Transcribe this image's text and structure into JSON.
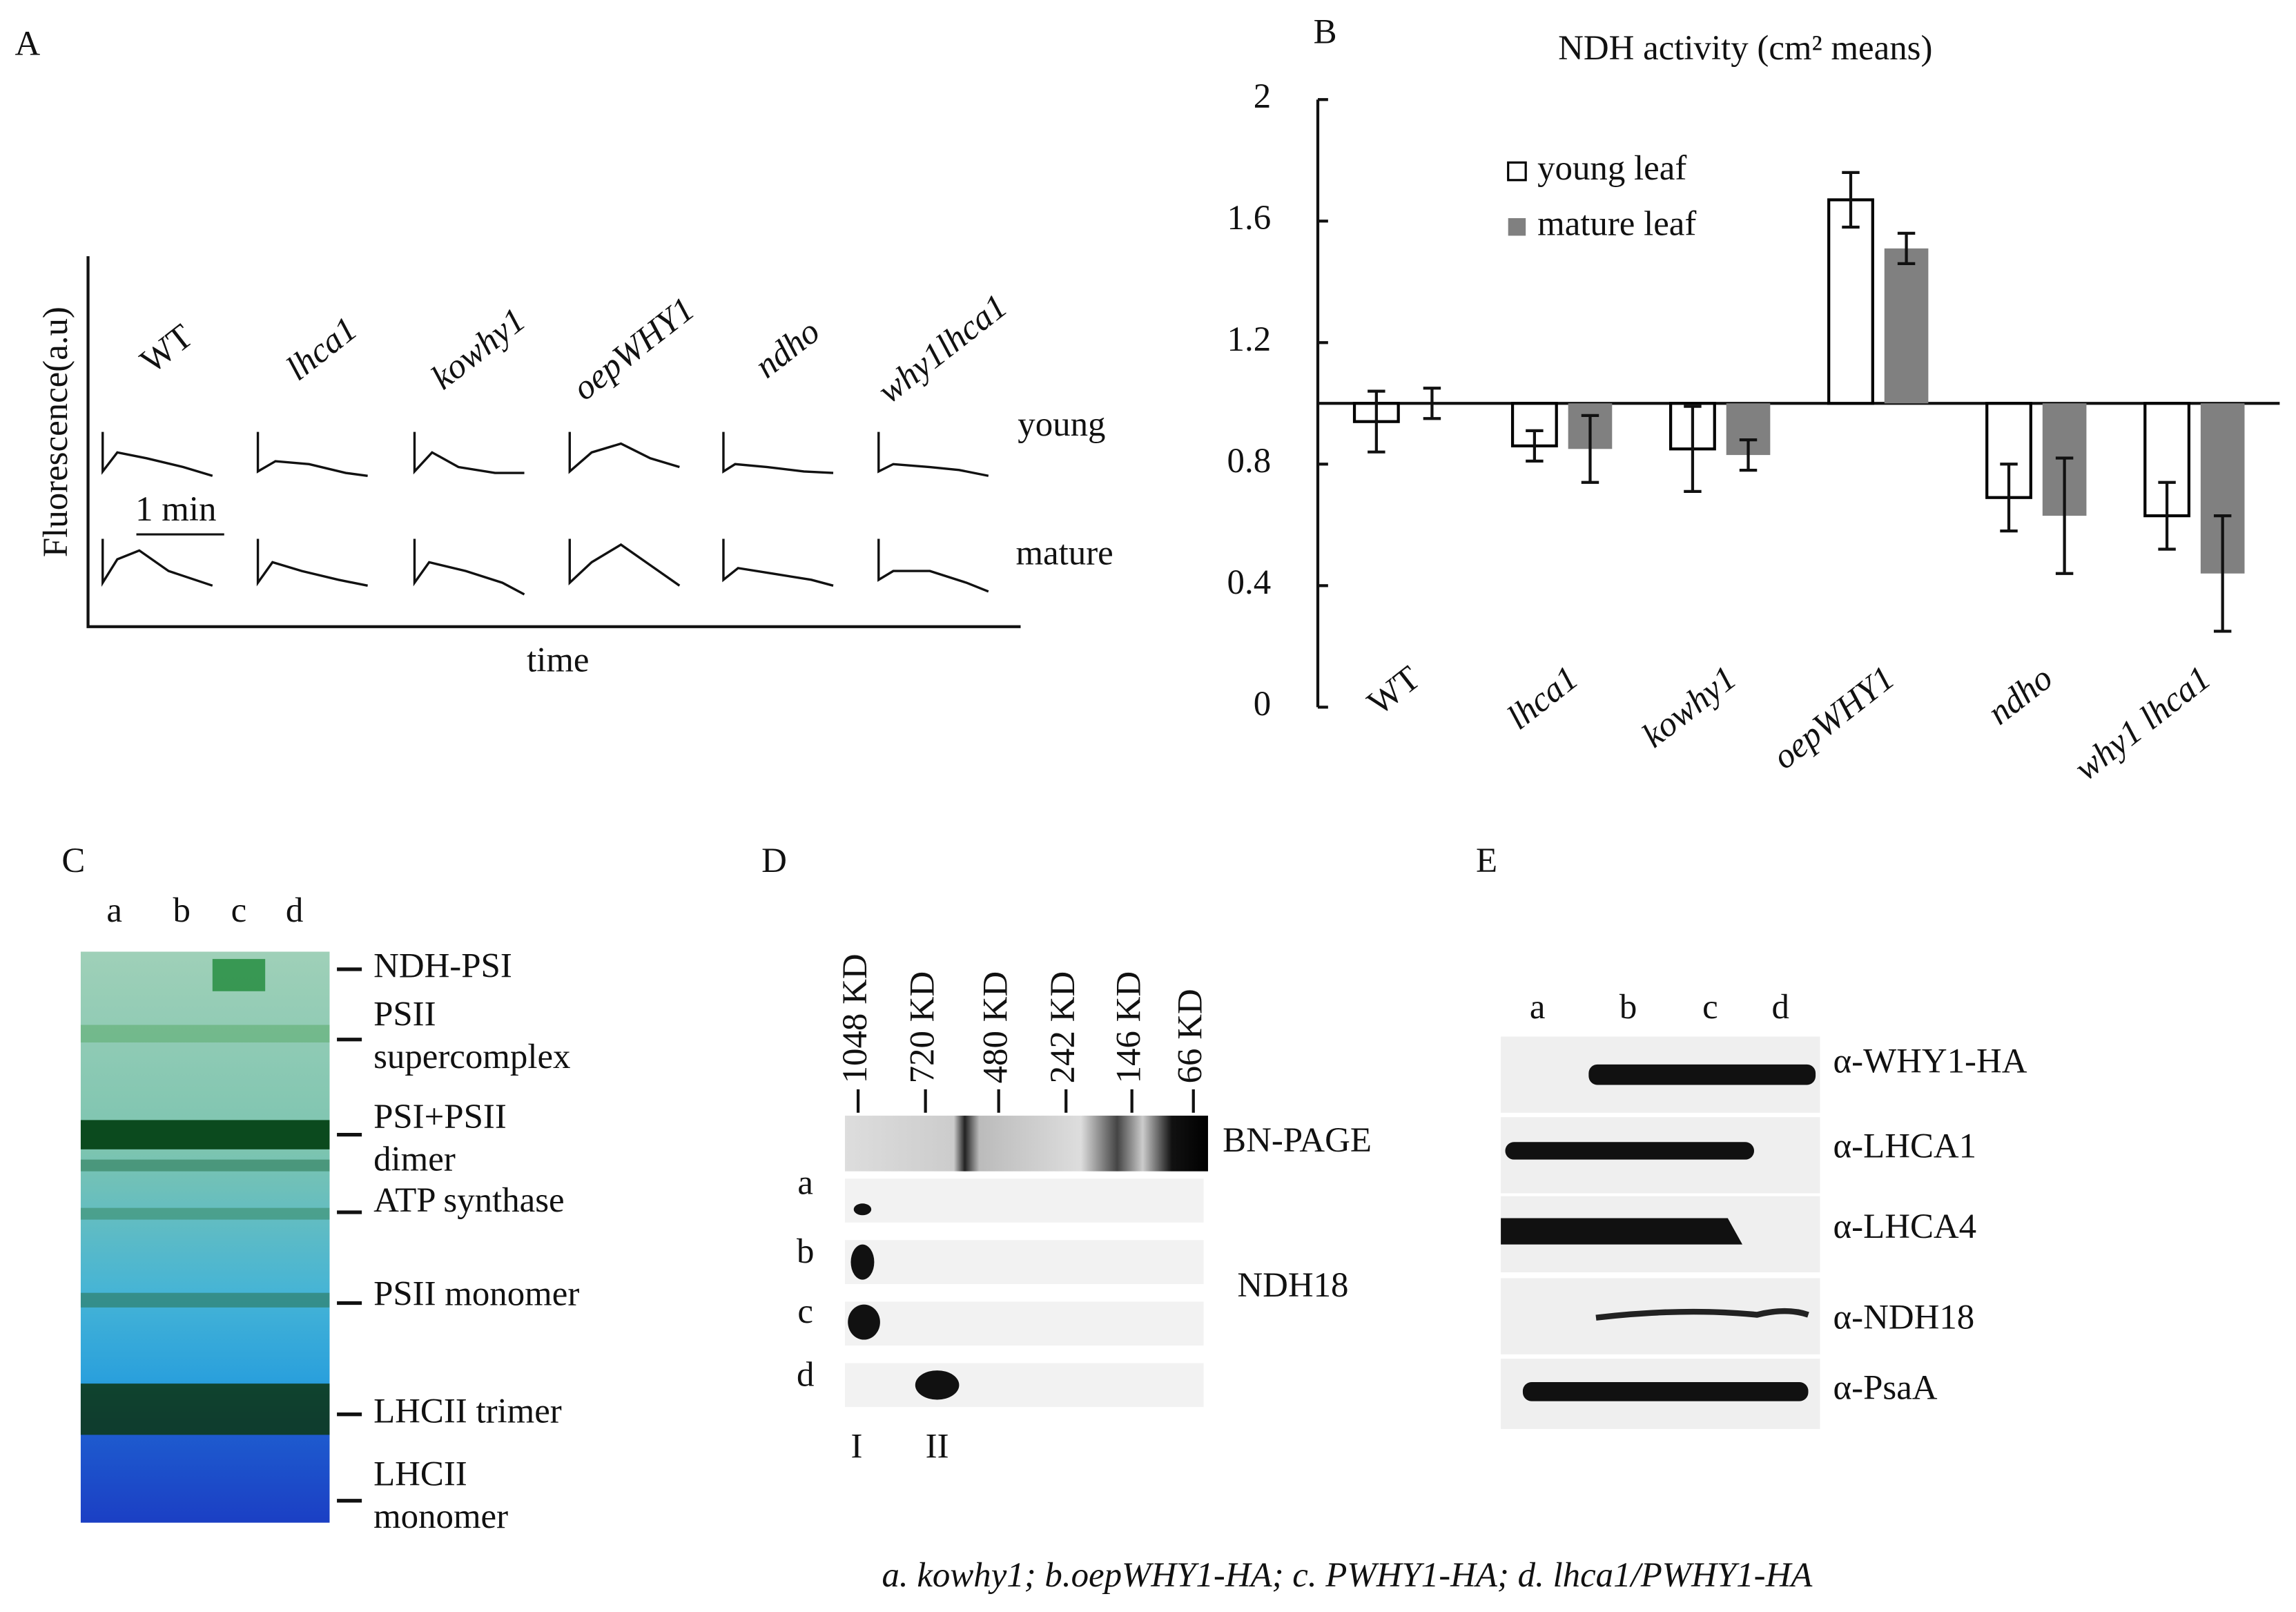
{
  "chart_data": {
    "type": "bar",
    "panel_label": "B",
    "title": "NDH activity (cm² means)",
    "categories": [
      "WT",
      "lhca1",
      "kowhy1",
      "oepWHY1",
      "ndho",
      "why1 lhca1"
    ],
    "series": [
      {
        "name": "young leaf",
        "color": "#ffffff",
        "edgecolor": "#000000",
        "values": [
          0.94,
          0.86,
          0.85,
          1.67,
          0.69,
          0.63
        ],
        "errors": [
          0.1,
          0.05,
          0.14,
          0.09,
          0.11,
          0.11
        ]
      },
      {
        "name": "mature leaf",
        "color": "#808080",
        "edgecolor": "none",
        "values": [
          1.0,
          0.85,
          0.83,
          1.51,
          0.63,
          0.44
        ],
        "errors": [
          0.05,
          0.11,
          0.05,
          0.05,
          0.19,
          0.19
        ]
      }
    ],
    "ylim": [
      0,
      2
    ],
    "yticks": [
      0,
      0.4,
      0.8,
      1.2,
      1.6,
      2
    ],
    "xaxis_crosses": 1,
    "legend": "upper left"
  },
  "panels": {
    "A": {
      "label": "A",
      "y_label": "Fluorescence(a.u)",
      "x_label": "time",
      "genotypes": [
        "WT",
        "lhca1",
        "kowhy1",
        "oepWHY1",
        "ndho",
        "why1lhca1"
      ],
      "rows": [
        "young",
        "mature"
      ],
      "scale": "1 min"
    },
    "C": {
      "label": "C",
      "lanes": [
        "a",
        "b",
        "c",
        "d"
      ],
      "bands": [
        [
          "NDH-PSI"
        ],
        [
          "PSII",
          "supercomplex"
        ],
        [
          "PSI+PSII",
          "dimer"
        ],
        [
          "ATP synthase"
        ],
        [
          "PSII monomer"
        ],
        [
          "LHCII trimer"
        ],
        [
          "LHCII",
          "monomer"
        ]
      ]
    },
    "D": {
      "label": "D",
      "markers": [
        "1048 KD",
        "720 KD",
        "480 KD",
        "242 KD",
        "146 KD",
        "66 KD"
      ],
      "gel": "BN-PAGE",
      "lanes": [
        "a",
        "b",
        "c",
        "d"
      ],
      "antibody": "NDH18",
      "complexes": [
        "I",
        "II"
      ]
    },
    "E": {
      "label": "E",
      "lanes": [
        "a",
        "b",
        "c",
        "d"
      ],
      "antibodies": [
        "α-WHY1-HA",
        "α-LHCA1",
        "α-LHCA4",
        "α-NDH18",
        "α-PsaA"
      ]
    }
  },
  "caption": "a. kowhy1; b.oepWHY1-HA; c. PWHY1-HA; d. lhca1/PWHY1-HA"
}
